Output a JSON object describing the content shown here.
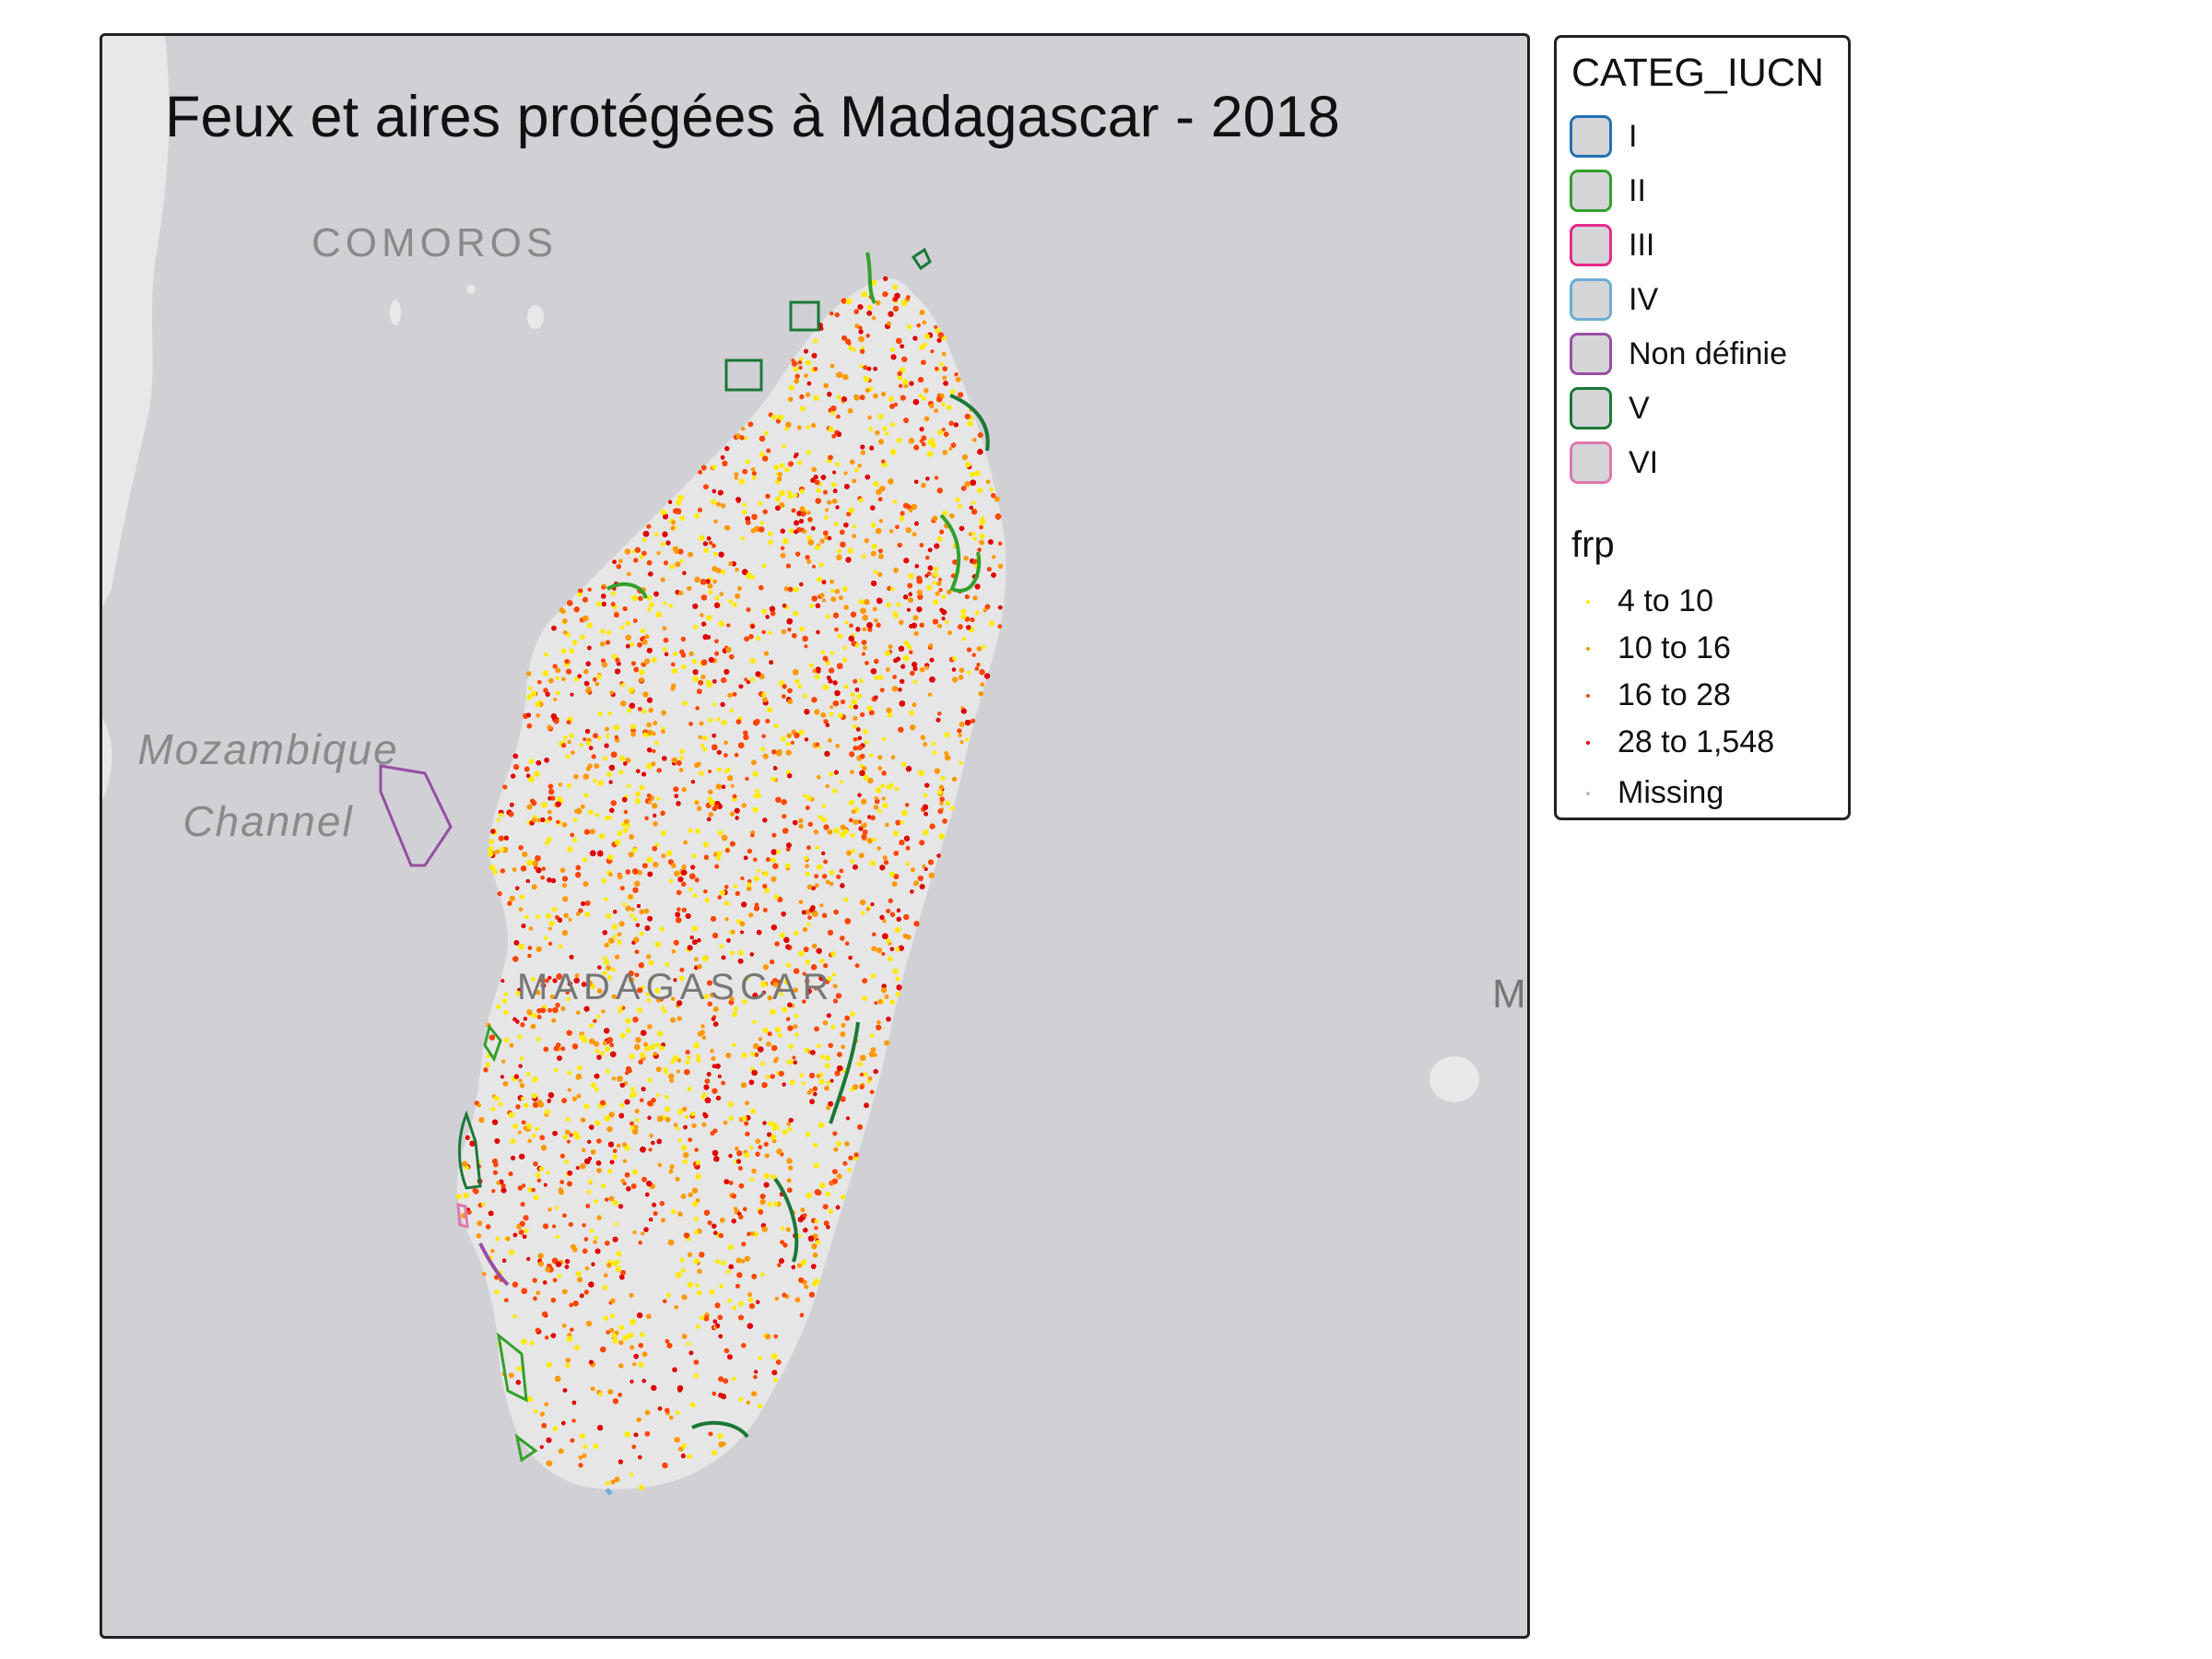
{
  "map": {
    "title": "Feux et aires protégées à Madagascar - 2018",
    "basemap_labels": {
      "comoros": "COMOROS",
      "mozambique_channel_line1": "Mozambique",
      "mozambique_channel_line2": "Channel",
      "madagascar": "MADAGASCAR",
      "east_edge": "M"
    },
    "colors": {
      "ocean": "#d0d0d5",
      "land": "#e6e6e6",
      "frame": "#222222"
    }
  },
  "legend": {
    "iucn": {
      "title": "CATEG_IUCN",
      "items": [
        {
          "label": "I",
          "color": "#2171b5"
        },
        {
          "label": "II",
          "color": "#33a02c"
        },
        {
          "label": "III",
          "color": "#e7298a"
        },
        {
          "label": "IV",
          "color": "#6baed6"
        },
        {
          "label": "Non définie",
          "color": "#984ea3"
        },
        {
          "label": "V",
          "color": "#1b7837"
        },
        {
          "label": "VI",
          "color": "#de77ae"
        }
      ]
    },
    "frp": {
      "title": "frp",
      "items": [
        {
          "label": "4 to 10",
          "color": "#ffeb00"
        },
        {
          "label": "10 to 16",
          "color": "#ff9900"
        },
        {
          "label": "16 to 28",
          "color": "#ff4500"
        },
        {
          "label": "28 to 1,548",
          "color": "#e00000"
        },
        {
          "label": "Missing",
          "color": "#bbbbbb"
        }
      ]
    }
  }
}
